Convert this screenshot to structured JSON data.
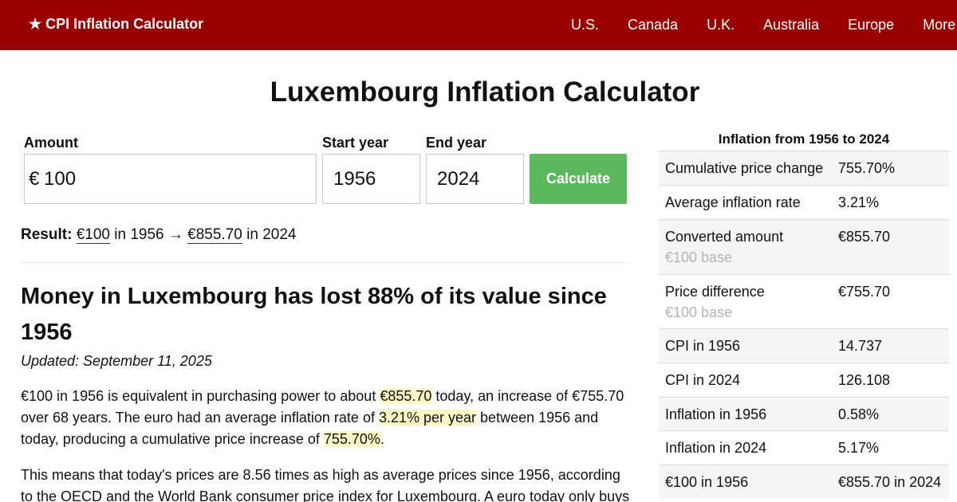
{
  "header": {
    "brand": "★ CPI Inflation Calculator",
    "nav": [
      "U.S.",
      "Canada",
      "U.K.",
      "Australia",
      "Europe",
      "More"
    ]
  },
  "title": "Luxembourg Inflation Calculator",
  "form": {
    "amount_label": "Amount",
    "currency_symbol": "€",
    "amount_value": "100",
    "start_label": "Start year",
    "start_value": "1956",
    "end_label": "End year",
    "end_value": "2024",
    "button": "Calculate"
  },
  "result": {
    "label": "Result:",
    "from_amount": "€100",
    "in1": "in 1956",
    "arrow": "→",
    "to_amount": "€855.70",
    "in2": "in 2024"
  },
  "article": {
    "heading": "Money in Luxembourg has lost 88% of its value since 1956",
    "updated": "Updated: September 11, 2025",
    "p1": {
      "t1": "€100 in 1956 is equivalent in purchasing power to about ",
      "h1": "€855.70",
      "t2": " today, an increase of €755.70 over 68 years. The euro had an average inflation rate of ",
      "h2": "3.21% per year",
      "t3": " between 1956 and today, producing a cumulative price increase of ",
      "h3": "755.70%",
      "t4": "."
    },
    "p2": "This means that today's prices are 8.56 times as high as average prices since 1956, according to the OECD and the World Bank consumer price index for Luxembourg. A euro today only buys"
  },
  "panel": {
    "title": "Inflation from 1956 to 2024",
    "rows": [
      {
        "label": "Cumulative price change",
        "value": "755.70%",
        "sub": ""
      },
      {
        "label": "Average inflation rate",
        "value": "3.21%",
        "sub": ""
      },
      {
        "label": "Converted amount",
        "value": "€855.70",
        "sub": "€100 base"
      },
      {
        "label": "Price difference",
        "value": "€755.70",
        "sub": "€100 base"
      },
      {
        "label": "CPI in 1956",
        "value": "14.737",
        "sub": ""
      },
      {
        "label": "CPI in 2024",
        "value": "126.108",
        "sub": ""
      },
      {
        "label": "Inflation in 1956",
        "value": "0.58%",
        "sub": ""
      },
      {
        "label": "Inflation in 2024",
        "value": "5.17%",
        "sub": ""
      },
      {
        "label": "€100 in 1956",
        "value": "€855.70 in 2024",
        "sub": ""
      }
    ]
  }
}
